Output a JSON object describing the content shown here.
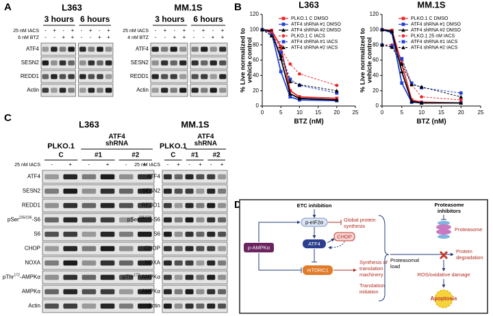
{
  "panel_labels": [
    "A",
    "B",
    "C",
    "D"
  ],
  "panel_a": {
    "blots": [
      {
        "title": "L363",
        "time_labels": [
          "3 hours",
          "6 hours"
        ],
        "treatments": [
          {
            "label": "25 nM IACS",
            "signs": [
              "-",
              "+",
              "-",
              "+",
              "-",
              "+",
              "-",
              "+"
            ]
          },
          {
            "label": "6 nM BTZ",
            "signs": [
              "-",
              "-",
              "+",
              "+",
              "-",
              "-",
              "+",
              "+"
            ]
          }
        ],
        "proteins": [
          "ATF4",
          "SESN2",
          "REDD1",
          "Actin"
        ]
      },
      {
        "title": "MM.1S",
        "time_labels": [
          "3 hours",
          "6 hours"
        ],
        "treatments": [
          {
            "label": "25 nM IACS",
            "signs": [
              "-",
              "+",
              "-",
              "+",
              "-",
              "+",
              "-",
              "+"
            ]
          },
          {
            "label": "4 nM BTZ",
            "signs": [
              "-",
              "-",
              "+",
              "+",
              "-",
              "-",
              "+",
              "+"
            ]
          }
        ],
        "proteins": [
          "ATF4",
          "SESN2",
          "REDD1",
          "Actin"
        ]
      }
    ]
  },
  "panel_b": {
    "charts": [
      {
        "type": "line",
        "title": "L363",
        "y_label": [
          "% Live normalized to",
          "vehicle control"
        ],
        "x_label": "BTZ (nM)",
        "x": [
          0,
          2.5,
          5,
          7.5,
          10,
          20
        ],
        "xlim": [
          0,
          25
        ],
        "xticks": [
          0,
          5,
          10,
          15,
          20,
          25
        ],
        "ylim": [
          0,
          120
        ],
        "yticks": [
          0,
          20,
          40,
          60,
          80,
          100,
          120
        ],
        "series": [
          {
            "name": "PLKO.1 C DMSO",
            "color": "#e8262a",
            "dashed": false,
            "marker": "square",
            "values": [
              100,
              99,
              78,
              20,
              12,
              10
            ]
          },
          {
            "name": "ATF4 shRNA #1 DMSO",
            "color": "#1f3fd6",
            "dashed": false,
            "marker": "square",
            "values": [
              100,
              96,
              45,
              12,
              8,
              7
            ]
          },
          {
            "name": "ATF4 shRNA #2 DMSO",
            "color": "#000000",
            "dashed": false,
            "marker": "triangle",
            "values": [
              100,
              98,
              62,
              16,
              10,
              8
            ]
          },
          {
            "name": "PLKO.1 C IACS",
            "color": "#e8262a",
            "dashed": true,
            "marker": "circle",
            "values": [
              100,
              96,
              75,
              55,
              42,
              27
            ]
          },
          {
            "name": "ATF4 shRNA #1 IACS",
            "color": "#1f3fd6",
            "dashed": true,
            "marker": "square",
            "values": [
              100,
              93,
              70,
              35,
              27,
              17
            ]
          },
          {
            "name": "ATF4 shRNA #2 IACS",
            "color": "#000000",
            "dashed": true,
            "marker": "triangle",
            "values": [
              100,
              92,
              66,
              32,
              28,
              20
            ]
          }
        ]
      },
      {
        "type": "line",
        "title": "MM.1S",
        "y_label": [
          "% Live normalized to",
          "vehicle control"
        ],
        "x_label": "BTZ (nM)",
        "x": [
          0,
          2.5,
          5,
          7.5,
          10,
          20
        ],
        "xlim": [
          0,
          25
        ],
        "xticks": [
          0,
          5,
          10,
          15,
          20,
          25
        ],
        "ylim": [
          0,
          120
        ],
        "yticks": [
          0,
          20,
          40,
          60,
          80,
          100,
          120
        ],
        "series": [
          {
            "name": "PLKO.1 C DMSO",
            "color": "#e8262a",
            "dashed": false,
            "marker": "square",
            "values": [
              100,
              99,
              55,
              8,
              5,
              4
            ]
          },
          {
            "name": "ATF4 shRNA #1 DMSO",
            "color": "#1f3fd6",
            "dashed": false,
            "marker": "square",
            "values": [
              100,
              96,
              30,
              5,
              4,
              4
            ]
          },
          {
            "name": "ATF4 shRNA #2 DMSO",
            "color": "#000000",
            "dashed": false,
            "marker": "triangle",
            "values": [
              100,
              98,
              45,
              6,
              4,
              4
            ]
          },
          {
            "name": "PLKO.1 25 nM IACS",
            "color": "#e8262a",
            "dashed": true,
            "marker": "circle",
            "values": [
              80,
              80,
              60,
              28,
              12,
              8
            ]
          },
          {
            "name": "ATF4 shRNA #1 IACS",
            "color": "#1f3fd6",
            "dashed": true,
            "marker": "square",
            "values": [
              80,
              78,
              62,
              30,
              24,
              17
            ]
          },
          {
            "name": "ATF4 shRNA #2 IACS",
            "color": "#000000",
            "dashed": true,
            "marker": "triangle",
            "values": [
              80,
              77,
              55,
              28,
              25,
              12
            ]
          }
        ]
      }
    ]
  },
  "panel_c": {
    "blots": [
      {
        "title": "L363",
        "control_label": "PLKO.1",
        "shrna_label": [
          "ATF4",
          "shRNA"
        ],
        "groups": [
          "C",
          "#1",
          "#2"
        ],
        "treatment": {
          "label": "25 nM IACS",
          "signs": [
            "-",
            "+",
            "-",
            "+",
            "-",
            "+"
          ]
        },
        "proteins": [
          "ATF4",
          "SESN2",
          "REDD1",
          {
            "base": "pSer",
            "sup": "235/236",
            "suffix": "-S6"
          },
          "S6",
          "CHOP",
          "NOXA",
          {
            "base": "pThr",
            "sup": "172",
            "suffix": "-AMPKα"
          },
          "AMPKα",
          "Actin"
        ]
      },
      {
        "title": "MM.1S",
        "control_label": "PLKO.1",
        "shrna_label": [
          "ATF4",
          "shRNA"
        ],
        "groups": [
          "C",
          "#1",
          "#2"
        ],
        "treatment": {
          "label": "25 nM IACS",
          "signs": [
            "-",
            "+",
            "-",
            "+",
            "-",
            "+"
          ]
        },
        "proteins": [
          "ATF4",
          "SESN2",
          "REDD1",
          {
            "base": "pSer",
            "sup": "235/236",
            "suffix": "-S6"
          },
          "S6",
          "CHOP",
          "NOXA",
          {
            "base": "pThr",
            "sup": "172",
            "suffix": "-AMPKα"
          },
          "AMPKα",
          "Actin"
        ]
      }
    ]
  },
  "panel_d": {
    "etc_inhibition": "ETC inhibition",
    "p_eif2a": "p-eIF2α",
    "global_protein_synthesis": [
      "Global protein",
      "synthesis"
    ],
    "chop": "CHOP",
    "atf4": "ATF4",
    "p_ampka": "p-AMPKα",
    "mtorc1": "mTORC1",
    "synthesis_machinery": [
      "Synthesis of",
      "translation",
      "machinery"
    ],
    "translation_initiation": [
      "Translation",
      "initiation"
    ],
    "proteasomal_load": [
      "Proteasomal",
      "load"
    ],
    "proteasome_inhibitors": [
      "Proteasome",
      "inhibitors"
    ],
    "proteasome": "Proteasome",
    "protein_degradation": [
      "Protein",
      "degradation"
    ],
    "ros": "ROS/oxidative damage",
    "apoptosis": "Apoptosis"
  }
}
